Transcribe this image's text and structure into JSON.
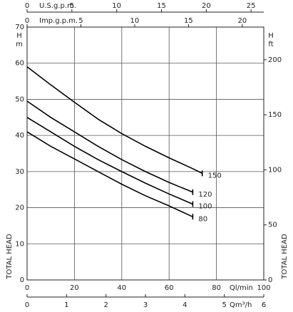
{
  "chart_data": {
    "type": "line",
    "xlabel": "Ql/min",
    "xlim": [
      0,
      100
    ],
    "xticks": [
      0,
      20,
      40,
      60,
      80,
      100
    ],
    "ylabel_top": "H",
    "ylabel_unit": "m",
    "ylabel_side": "TOTAL HEAD",
    "ylim": [
      0,
      70
    ],
    "yticks": [
      0,
      10,
      20,
      30,
      40,
      50,
      60,
      70
    ],
    "grid": true,
    "us_gpm_axis": {
      "label": "U.S.g.p.m.",
      "lim": [
        0,
        26.42
      ],
      "ticks": [
        0,
        5,
        10,
        15,
        20,
        25
      ]
    },
    "imp_gpm_axis": {
      "label": "Imp.g.p.m.",
      "lim": [
        0,
        22
      ],
      "ticks": [
        0,
        5,
        10,
        15,
        20
      ]
    },
    "m3h_axis": {
      "label": "Qm³/h",
      "lim": [
        0,
        6
      ],
      "ticks": [
        0,
        1,
        2,
        3,
        4,
        5,
        6
      ]
    },
    "ft_axis": {
      "label_top": "H",
      "label_unit": "ft",
      "label_side": "TOTAL HEAD",
      "lim": [
        0,
        229.66
      ],
      "ticks": [
        0,
        50,
        100,
        150,
        200
      ]
    },
    "series": [
      {
        "name": "150",
        "color": "#000000",
        "x": [
          0,
          10,
          20,
          30,
          40,
          50,
          60,
          70,
          74
        ],
        "values": [
          59,
          54,
          49.2,
          44.5,
          40.5,
          37,
          33.8,
          30.8,
          29.5
        ]
      },
      {
        "name": "120",
        "color": "#000000",
        "x": [
          0,
          10,
          20,
          30,
          40,
          50,
          60,
          70
        ],
        "values": [
          49.5,
          45,
          41,
          37,
          33.3,
          30,
          27,
          24.3
        ]
      },
      {
        "name": "100",
        "color": "#000000",
        "x": [
          0,
          10,
          20,
          30,
          40,
          50,
          60,
          70
        ],
        "values": [
          45,
          41,
          37,
          33.3,
          30,
          26.8,
          23.8,
          21
        ]
      },
      {
        "name": "80",
        "color": "#000000",
        "x": [
          0,
          10,
          20,
          30,
          40,
          50,
          60,
          70
        ],
        "values": [
          41,
          37,
          33.5,
          30,
          26.5,
          23.3,
          20.5,
          17.5
        ]
      }
    ]
  }
}
